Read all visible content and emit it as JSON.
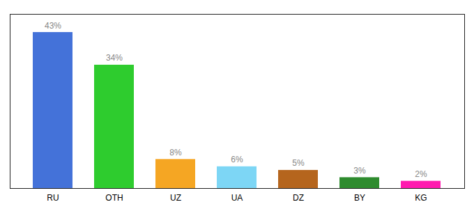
{
  "chart_data": {
    "type": "bar",
    "categories": [
      "RU",
      "OTH",
      "UZ",
      "UA",
      "DZ",
      "BY",
      "KG"
    ],
    "values": [
      43,
      34,
      8,
      6,
      5,
      3,
      2
    ],
    "value_labels": [
      "43%",
      "34%",
      "8%",
      "6%",
      "5%",
      "3%",
      "2%"
    ],
    "colors": [
      "#4472d9",
      "#2ecc2e",
      "#f5a623",
      "#7dd6f5",
      "#b5651d",
      "#2e8b2e",
      "#ff1aaf"
    ],
    "ylim": [
      0,
      48
    ],
    "data_labels": true,
    "tick_labels": "x",
    "grid": false
  }
}
